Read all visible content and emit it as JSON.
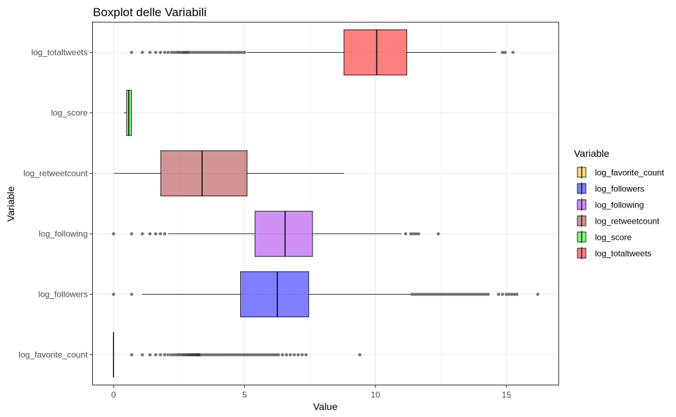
{
  "chart_data": {
    "type": "boxplot",
    "orientation": "horizontal",
    "title": "Boxplot delle Variabili",
    "xlabel": "Value",
    "ylabel": "Variable",
    "xlim": [
      -0.8,
      17.0
    ],
    "xticks": [
      0,
      5,
      10,
      15
    ],
    "grid": true,
    "legend_title": "Variable",
    "legend_position": "right",
    "categories": [
      "log_favorite_count",
      "log_followers",
      "log_following",
      "log_retweetcount",
      "log_score",
      "log_totaltweets"
    ],
    "series": [
      {
        "name": "log_favorite_count",
        "color": "#ffb800",
        "whisker_low": 0.0,
        "q1": 0.0,
        "median": 0.0,
        "q3": 0.0,
        "whisker_high": 0.0,
        "outliers": [
          0.69,
          1.1,
          1.39,
          1.61,
          1.79,
          1.95,
          2.08,
          2.2,
          2.3,
          2.4,
          2.48,
          2.56,
          2.64,
          2.7,
          2.77,
          2.83,
          2.89,
          2.94,
          3.0,
          3.04,
          3.09,
          3.14,
          3.18,
          3.22,
          3.26,
          3.3,
          3.4,
          3.5,
          3.6,
          3.7,
          3.8,
          3.9,
          4.0,
          4.1,
          4.2,
          4.3,
          4.4,
          4.5,
          4.6,
          4.7,
          4.8,
          4.9,
          5.0,
          5.1,
          5.2,
          5.3,
          5.4,
          5.5,
          5.6,
          5.7,
          5.8,
          5.9,
          6.0,
          6.1,
          6.2,
          6.3,
          6.45,
          6.6,
          6.75,
          6.9,
          7.05,
          7.2,
          7.35,
          9.4
        ]
      },
      {
        "name": "log_followers",
        "color": "#0000ff",
        "whisker_low": 1.1,
        "q1": 4.85,
        "median": 6.25,
        "q3": 7.45,
        "whisker_high": 11.35,
        "outliers": [
          0.0,
          0.69,
          11.4,
          11.5,
          11.6,
          11.7,
          11.8,
          11.9,
          12.0,
          12.1,
          12.2,
          12.3,
          12.4,
          12.5,
          12.6,
          12.7,
          12.8,
          12.9,
          13.0,
          13.1,
          13.2,
          13.3,
          13.4,
          13.5,
          13.6,
          13.7,
          13.8,
          13.9,
          14.0,
          14.1,
          14.2,
          14.3,
          14.7,
          14.85,
          15.0,
          15.1,
          15.2,
          15.3,
          15.4,
          16.2
        ]
      },
      {
        "name": "log_following",
        "color": "#a020f0",
        "whisker_low": 2.08,
        "q1": 5.4,
        "median": 6.55,
        "q3": 7.6,
        "whisker_high": 11.0,
        "outliers": [
          0.0,
          0.69,
          1.1,
          1.39,
          1.61,
          1.79,
          1.95,
          11.15,
          11.35,
          11.45,
          11.55,
          11.65,
          12.4
        ]
      },
      {
        "name": "log_retweetcount",
        "color": "#a52a2a",
        "whisker_low": 0.0,
        "q1": 1.8,
        "median": 3.38,
        "q3": 5.1,
        "whisker_high": 8.8,
        "outliers": []
      },
      {
        "name": "log_score",
        "color": "#00ff00",
        "whisker_low": 0.4,
        "q1": 0.5,
        "median": 0.58,
        "q3": 0.68,
        "whisker_high": 0.69,
        "outliers": []
      },
      {
        "name": "log_totaltweets",
        "color": "#ff0000",
        "whisker_low": 5.1,
        "q1": 8.8,
        "median": 10.05,
        "q3": 11.2,
        "whisker_high": 14.6,
        "outliers": [
          0.69,
          1.1,
          1.39,
          1.61,
          1.79,
          1.95,
          2.08,
          2.2,
          2.3,
          2.4,
          2.48,
          2.56,
          2.64,
          2.7,
          2.77,
          2.83,
          2.9,
          3.0,
          3.1,
          3.2,
          3.3,
          3.4,
          3.5,
          3.6,
          3.7,
          3.8,
          3.9,
          4.0,
          4.1,
          4.2,
          4.3,
          4.4,
          4.5,
          4.6,
          4.7,
          4.8,
          4.9,
          5.0,
          14.85,
          14.95,
          15.25
        ]
      }
    ]
  }
}
